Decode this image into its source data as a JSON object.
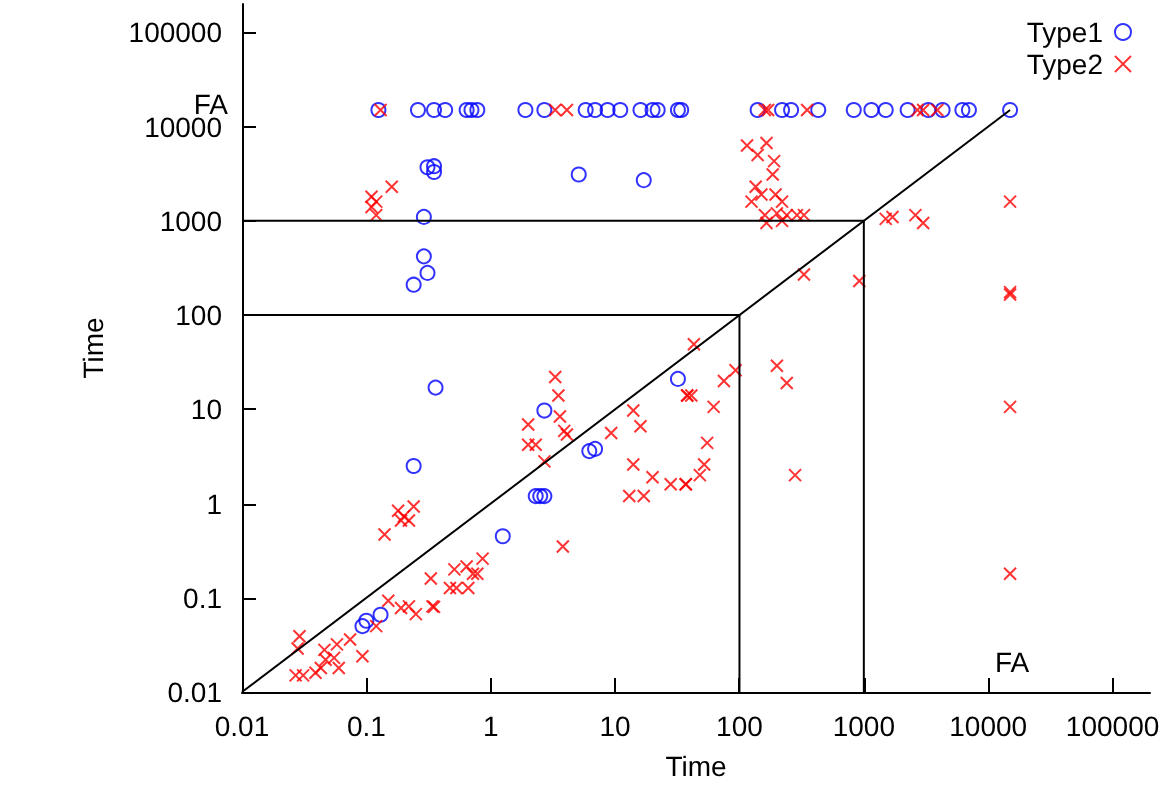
{
  "chart_data": {
    "type": "scatter",
    "xlabel": "Time",
    "ylabel": "Time",
    "log": "xy",
    "xlim": [
      0.01,
      200000
    ],
    "ylim": [
      0.01,
      200000
    ],
    "xticks": [
      0.01,
      0.1,
      1,
      10,
      100,
      1000,
      10000,
      100000
    ],
    "yticks": [
      0.01,
      0.1,
      1,
      10,
      100,
      1000,
      10000,
      100000
    ],
    "grid": false,
    "legend": "top right",
    "annotations": [
      "FA",
      "FA"
    ],
    "series": [
      {
        "name": "Type1",
        "color": "#0000ff",
        "marker": "circle",
        "x": [
          0.125,
          0.26,
          0.35,
          0.43,
          0.64,
          0.7,
          0.78,
          1.9,
          2.7,
          5.8,
          6.9,
          8.7,
          11,
          16,
          20,
          22,
          32,
          34,
          140,
          220,
          260,
          430,
          830,
          1150,
          1500,
          2250,
          3300,
          4300,
          6200,
          7000,
          15000,
          0.31,
          0.35,
          0.35,
          5.1,
          17,
          0.29,
          0.29,
          0.31,
          0.24,
          0.36,
          0.24,
          2.7,
          6.2,
          6.9,
          32,
          1.25,
          2.3,
          2.5,
          2.7,
          0.093,
          0.1,
          0.13
        ],
        "values": [
          15000,
          15000,
          15000,
          15000,
          15000,
          15000,
          15000,
          15000,
          15000,
          15000,
          15000,
          15000,
          15000,
          15000,
          15000,
          15000,
          15000,
          15000,
          15000,
          15000,
          15000,
          15000,
          15000,
          15000,
          15000,
          15000,
          15000,
          15000,
          15000,
          15000,
          15000,
          3700,
          3800,
          3300,
          3100,
          2700,
          1100,
          420,
          280,
          210,
          17,
          2.5,
          9.7,
          3.6,
          3.8,
          21,
          0.45,
          1.2,
          1.2,
          1.2,
          0.05,
          0.057,
          0.066
        ]
      },
      {
        "name": "Type2",
        "color": "#ff0000",
        "marker": "cross",
        "x": [
          0.13,
          3.3,
          4.1,
          160,
          170,
          350,
          2700,
          3000,
          3900,
          0.11,
          0.12,
          0.12,
          0.11,
          0.16,
          115,
          165,
          140,
          190,
          185,
          135,
          150,
          125,
          195,
          220,
          160,
          200,
          240,
          290,
          330,
          165,
          220,
          330,
          920,
          1500,
          1700,
          2600,
          3000,
          15000,
          15000,
          15000,
          43,
          93,
          75,
          200,
          240,
          38,
          62,
          55,
          52,
          48,
          37,
          280,
          15000,
          15000,
          3.3,
          3.5,
          2.0,
          2.0,
          2.3,
          3.6,
          3.9,
          4.1,
          2.7,
          3.8,
          9.3,
          14,
          16,
          14,
          20,
          13,
          17,
          28,
          37,
          38,
          41,
          0.14,
          0.18,
          0.19,
          0.22,
          0.24,
          0.2,
          0.15,
          0.19,
          0.22,
          0.25,
          0.34,
          0.35,
          0.33,
          0.47,
          0.51,
          0.53,
          0.64,
          0.72,
          0.78,
          0.86,
          0.66,
          0.12,
          0.093,
          0.074,
          0.058,
          0.06,
          0.046,
          0.047,
          0.043,
          0.029,
          0.028,
          0.027,
          0.031,
          0.039,
          0.055
        ],
        "values": [
          15000,
          15000,
          15000,
          15000,
          15000,
          15000,
          15000,
          15000,
          15000,
          1800,
          1600,
          1150,
          1400,
          2300,
          6300,
          6700,
          5000,
          4300,
          3100,
          2300,
          1900,
          1600,
          1900,
          1600,
          1150,
          1200,
          1150,
          1150,
          1150,
          950,
          1000,
          270,
          230,
          1050,
          1100,
          1150,
          950,
          1600,
          165,
          175,
          49,
          26,
          20,
          29,
          19,
          14,
          10.6,
          4.4,
          2.6,
          2.0,
          1.6,
          2.0,
          10.6,
          0.18,
          22,
          14,
          6.9,
          4.2,
          4.2,
          8.4,
          5.9,
          5.4,
          2.8,
          0.35,
          5.6,
          9.7,
          6.6,
          2.6,
          1.9,
          1.2,
          1.2,
          1.6,
          1.6,
          14,
          14,
          0.47,
          0.84,
          0.66,
          0.66,
          0.93,
          0.73,
          0.093,
          0.078,
          0.081,
          0.067,
          0.081,
          0.08,
          0.16,
          0.127,
          0.2,
          0.127,
          0.215,
          0.18,
          0.18,
          0.26,
          0.127,
          0.05,
          0.024,
          0.036,
          0.032,
          0.018,
          0.028,
          0.022,
          0.018,
          0.039,
          0.029,
          0.015,
          0.015,
          0.016,
          0.023
        ]
      },
      {
        "type": "line",
        "color": "#000000",
        "marker": "none",
        "x": [
          0.01,
          15000
        ],
        "values": [
          0.01,
          15000
        ]
      },
      {
        "type": "line",
        "color": "#000000",
        "marker": "none",
        "x": [
          0.01,
          100,
          100
        ],
        "values": [
          100,
          100,
          0.01
        ]
      },
      {
        "type": "line",
        "color": "#000000",
        "marker": "none",
        "x": [
          0.01,
          1000,
          1000
        ],
        "values": [
          1000,
          1000,
          0.01
        ]
      }
    ]
  }
}
